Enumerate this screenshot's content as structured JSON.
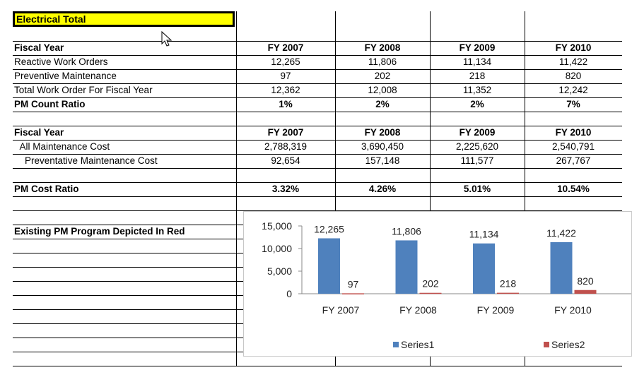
{
  "sheet": {
    "title": "Electrical Total",
    "sections": {
      "counts": {
        "header": {
          "label": "Fiscal Year",
          "years": [
            "FY 2007",
            "FY 2008",
            "FY 2009",
            "FY 2010"
          ]
        },
        "rows": [
          {
            "label": "Reactive Work Orders",
            "values": [
              "12,265",
              "11,806",
              "11,134",
              "11,422"
            ]
          },
          {
            "label": "Preventive Maintenance",
            "values": [
              "97",
              "202",
              "218",
              "820"
            ]
          },
          {
            "label": "Total Work Order For Fiscal Year",
            "values": [
              "12,362",
              "12,008",
              "11,352",
              "12,242"
            ]
          }
        ],
        "ratio": {
          "label": "PM Count Ratio",
          "values": [
            "1%",
            "2%",
            "2%",
            "7%"
          ]
        }
      },
      "costs": {
        "header": {
          "label": "Fiscal Year",
          "years": [
            "FY 2007",
            "FY 2008",
            "FY 2009",
            "FY 2010"
          ]
        },
        "rows": [
          {
            "label": " All Maintenance Cost",
            "values": [
              "2,788,319",
              "3,690,450",
              "2,225,620",
              "2,540,791"
            ]
          },
          {
            "label": "  Preventative Maintenance Cost",
            "values": [
              "92,654",
              "157,148",
              "111,577",
              "267,767"
            ]
          }
        ],
        "ratio": {
          "label": "PM Cost Ratio",
          "values": [
            "3.32%",
            "4.26%",
            "5.01%",
            "10.54%"
          ]
        }
      },
      "chart_label": "Existing PM Program Depicted In Red"
    }
  },
  "colors": {
    "highlight": "#ffff00",
    "series1": "#4f81bd",
    "series2": "#c0504d"
  },
  "chart_data": {
    "type": "bar",
    "categories": [
      "FY 2007",
      "FY 2008",
      "FY 2009",
      "FY 2010"
    ],
    "series": [
      {
        "name": "Series1",
        "values": [
          12265,
          11806,
          11134,
          11422
        ]
      },
      {
        "name": "Series2",
        "values": [
          97,
          202,
          218,
          820
        ]
      }
    ],
    "data_labels": [
      [
        "12,265",
        "11,806",
        "11,134",
        "11,422"
      ],
      [
        "97",
        "202",
        "218",
        "820"
      ]
    ],
    "y_ticks": [
      "15,000",
      "10,000",
      "5,000",
      "0"
    ],
    "y_tick_values": [
      15000,
      10000,
      5000,
      0
    ],
    "ylim": [
      0,
      15000
    ],
    "legend": "bottom",
    "grid": false
  }
}
